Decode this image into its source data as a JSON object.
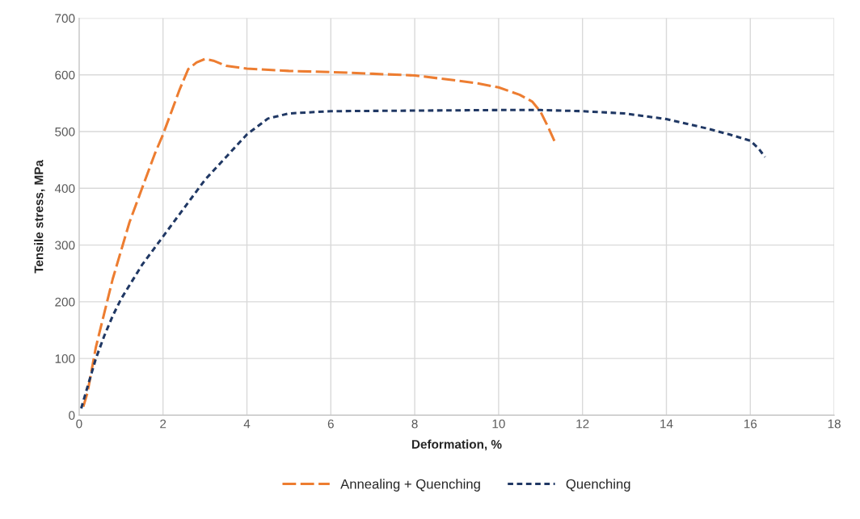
{
  "chart_data": {
    "type": "line",
    "xlabel": "Deformation, %",
    "ylabel": "Tensile stress, MPa",
    "xlim": [
      0,
      18
    ],
    "xticks": [
      0,
      2,
      4,
      6,
      8,
      10,
      12,
      14,
      16,
      18
    ],
    "ylim": [
      0,
      700
    ],
    "yticks": [
      0,
      100,
      200,
      300,
      400,
      500,
      600,
      700
    ],
    "grid": true,
    "legend": "bottom",
    "marker": "none",
    "series": [
      {
        "name": "Annealing + Quenching",
        "color": "#ed7d31",
        "line_style": "dashed",
        "x": [
          0.1,
          0.2,
          0.4,
          0.6,
          0.8,
          1.0,
          1.2,
          1.5,
          1.8,
          2.0,
          2.2,
          2.4,
          2.6,
          2.8,
          3.0,
          3.2,
          3.5,
          4.0,
          5,
          6,
          7,
          8,
          9,
          9.5,
          10,
          10.5,
          10.8,
          11.0,
          11.2,
          11.35
        ],
        "values": [
          15,
          40,
          120,
          180,
          240,
          290,
          340,
          400,
          460,
          495,
          535,
          575,
          610,
          622,
          628,
          625,
          616,
          611,
          607,
          605,
          602,
          599,
          590,
          585,
          578,
          565,
          553,
          535,
          505,
          480
        ]
      },
      {
        "name": "Quenching",
        "color": "#203864",
        "line_style": "dashed",
        "x": [
          0.05,
          0.2,
          0.4,
          0.6,
          0.8,
          1.0,
          1.5,
          2.0,
          2.5,
          3.0,
          3.5,
          4.0,
          4.5,
          5.0,
          6,
          8,
          10,
          11,
          12,
          13,
          14,
          15,
          15.5,
          16.0,
          16.2,
          16.35
        ],
        "values": [
          12,
          50,
          100,
          140,
          175,
          205,
          265,
          315,
          365,
          415,
          455,
          495,
          523,
          532,
          536,
          537,
          538,
          538,
          536,
          532,
          522,
          505,
          495,
          484,
          470,
          455
        ]
      }
    ]
  }
}
